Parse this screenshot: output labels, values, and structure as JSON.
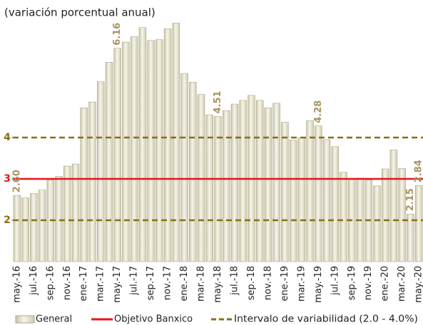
{
  "chart_data": {
    "type": "bar",
    "subtitle": "(variación porcentual anual)",
    "categories": [
      "may.-16",
      null,
      "jul.-16",
      null,
      "sep.-16",
      null,
      "nov.-16",
      null,
      "ene.-17",
      null,
      "mar.-17",
      null,
      "may.-17",
      null,
      "jul.-17",
      null,
      "sep.-17",
      null,
      "nov.-17",
      null,
      "ene.-18",
      null,
      "mar.-18",
      null,
      "may.-18",
      null,
      "jul.-18",
      null,
      "sep.-18",
      null,
      "nov.-18",
      null,
      "ene.-19",
      null,
      "mar.-19",
      null,
      "may.-19",
      null,
      "jul.-19",
      null,
      "sep.-19",
      null,
      "nov.-19",
      null,
      "ene.-20",
      null,
      "mar.-20",
      null,
      "may.-20"
    ],
    "series": [
      {
        "name": "General",
        "color": "#e2dfc8",
        "values": [
          2.6,
          2.54,
          2.65,
          2.73,
          2.97,
          3.06,
          3.31,
          3.36,
          4.72,
          4.86,
          5.35,
          5.82,
          6.16,
          6.31,
          6.44,
          6.66,
          6.35,
          6.37,
          6.63,
          6.77,
          5.55,
          5.34,
          5.04,
          4.55,
          4.51,
          4.65,
          4.81,
          4.9,
          5.02,
          4.9,
          4.72,
          4.83,
          4.37,
          3.94,
          4.0,
          4.41,
          4.28,
          3.95,
          3.78,
          3.16,
          3.0,
          3.02,
          2.97,
          2.83,
          3.24,
          3.7,
          3.25,
          2.15,
          2.84
        ],
        "value_labels": [
          "2.60",
          null,
          null,
          null,
          null,
          null,
          null,
          null,
          null,
          null,
          null,
          null,
          "6.16",
          null,
          null,
          null,
          null,
          null,
          null,
          null,
          null,
          null,
          null,
          null,
          "4.51",
          null,
          null,
          null,
          null,
          null,
          null,
          null,
          null,
          null,
          null,
          null,
          "4.28",
          null,
          null,
          null,
          null,
          null,
          null,
          null,
          null,
          null,
          null,
          "2.15",
          "2.84"
        ]
      }
    ],
    "reference_lines": [
      {
        "name": "Objetivo Banxico",
        "value": 3,
        "color": "#e8141b",
        "style": "solid"
      },
      {
        "name": "Intervalo de variabilidad (2.0 - 4.0%)",
        "values": [
          2,
          4
        ],
        "color": "#8a6d13",
        "style": "dashed"
      }
    ],
    "label_color": "#a89460",
    "ylim": [
      1,
      7
    ],
    "yticks": [
      2,
      3,
      4
    ]
  }
}
